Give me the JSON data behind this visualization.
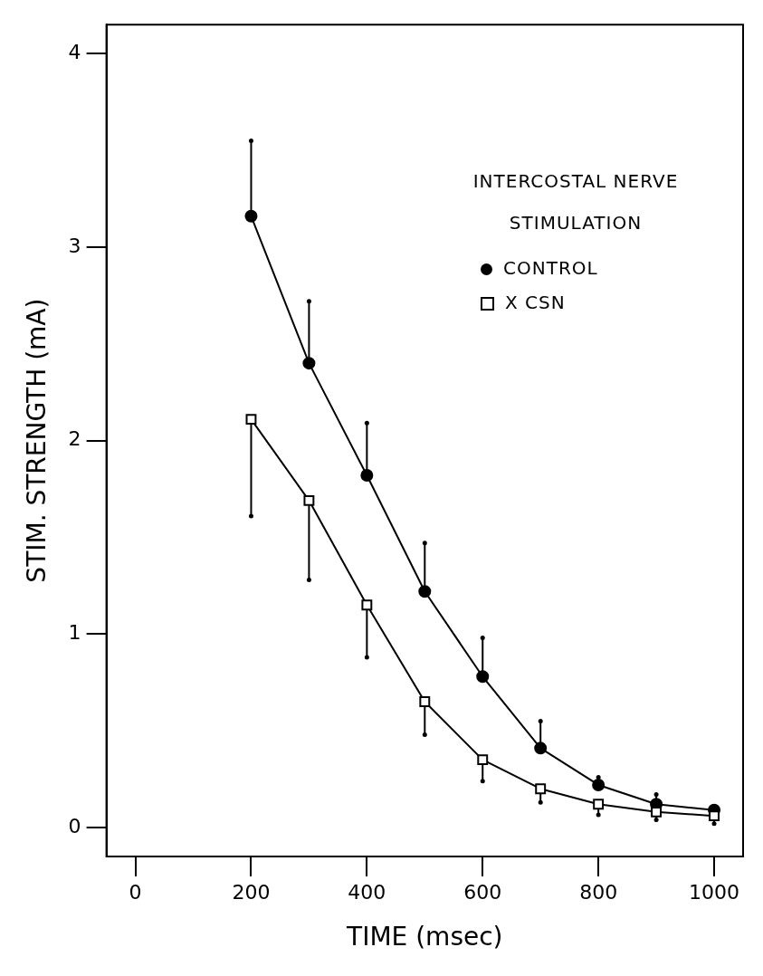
{
  "chart_data": {
    "type": "line",
    "xlabel": "TIME (msec)",
    "ylabel": "STIM. STRENGTH (mA)",
    "legend_title": "INTERCOSTAL NERVE STIMULATION",
    "legend": "top right",
    "grid": false,
    "line_style": "solid",
    "x": [
      200,
      300,
      400,
      500,
      600,
      700,
      800,
      900,
      1000
    ],
    "xlim": [
      -50,
      1050
    ],
    "xticks": [
      0,
      200,
      400,
      600,
      800,
      1000
    ],
    "ylim": [
      -0.15,
      4.15
    ],
    "yticks": [
      0,
      1,
      2,
      3,
      4
    ],
    "series": [
      {
        "name": "CONTROL",
        "color": "#000000",
        "marker": "circle",
        "values": [
          3.16,
          2.4,
          1.82,
          1.22,
          0.78,
          0.41,
          0.22,
          0.12,
          0.09
        ],
        "errors": [
          [
            3.16,
            3.55
          ],
          [
            2.4,
            2.72
          ],
          [
            1.82,
            2.09
          ],
          [
            1.22,
            1.47
          ],
          [
            0.78,
            0.98
          ],
          [
            0.41,
            0.55
          ],
          [
            0.22,
            0.26
          ],
          [
            0.12,
            0.17
          ],
          [
            0.09,
            0.11
          ]
        ]
      },
      {
        "name": "X CSN",
        "color": "#000000",
        "marker": "square",
        "values": [
          2.11,
          1.69,
          1.15,
          0.65,
          0.35,
          0.2,
          0.12,
          0.08,
          0.06
        ],
        "errors": [
          [
            1.61,
            2.11
          ],
          [
            1.28,
            1.69
          ],
          [
            0.88,
            1.15
          ],
          [
            0.48,
            0.65
          ],
          [
            0.24,
            0.35
          ],
          [
            0.13,
            0.2
          ],
          [
            0.065,
            0.12
          ],
          [
            0.04,
            0.08
          ],
          [
            0.02,
            0.06
          ]
        ]
      }
    ]
  }
}
